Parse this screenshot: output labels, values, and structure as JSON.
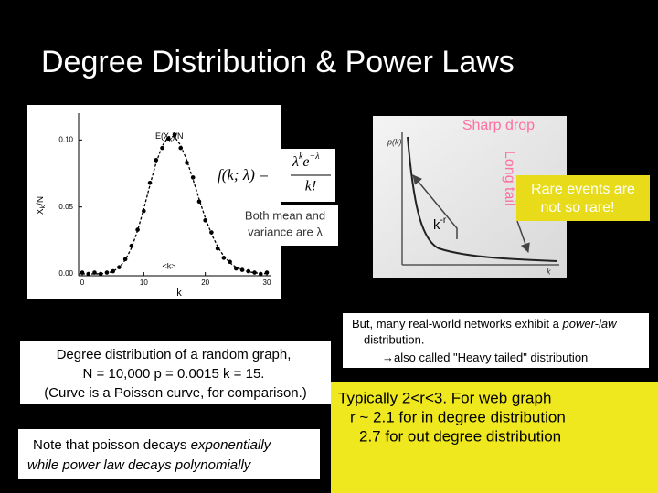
{
  "title": "Degree Distribution & Power Laws",
  "poisson_plot": {
    "top_label": {
      "main": "E(X",
      "sub": "k",
      "tail": ")/N"
    },
    "y_label": {
      "main": "X",
      "sub": "k",
      "tail": "/N"
    },
    "x_label": "k",
    "mean_marker": "<k>",
    "xlim": [
      0,
      30
    ],
    "ylim": [
      0,
      0.12
    ],
    "xticks": [
      0,
      10,
      20,
      30
    ],
    "yticks": [
      {
        "value": 0,
        "label": "0.00"
      },
      {
        "value": 0.05,
        "label": "0.05"
      },
      {
        "value": 0.1,
        "label": "0.10"
      }
    ],
    "curve_x": [
      0,
      1,
      2,
      3,
      4,
      5,
      6,
      7,
      8,
      9,
      10,
      11,
      12,
      13,
      14,
      15,
      16,
      17,
      18,
      19,
      20,
      21,
      22,
      23,
      24,
      25,
      26,
      27,
      28,
      29,
      30
    ],
    "curve_y": [
      0,
      0,
      0,
      0.0002,
      0.0006,
      0.0019,
      0.0048,
      0.0104,
      0.0194,
      0.0324,
      0.0486,
      0.0663,
      0.0829,
      0.0956,
      0.1024,
      0.1024,
      0.096,
      0.0847,
      0.0706,
      0.0557,
      0.0418,
      0.0299,
      0.0204,
      0.0133,
      0.0083,
      0.005,
      0.0029,
      0.0016,
      0.0009,
      0.0004,
      0.0002
    ],
    "points_x": [
      0,
      1,
      2,
      3,
      4,
      5,
      6,
      7,
      8,
      9,
      10,
      11,
      12,
      13,
      14,
      15,
      16,
      17,
      18,
      19,
      20,
      21,
      22,
      23,
      24,
      25,
      26,
      27,
      28,
      29,
      30
    ],
    "points_y": [
      0.001,
      0,
      0.001,
      0,
      0.001,
      0.002,
      0.005,
      0.011,
      0.021,
      0.033,
      0.047,
      0.068,
      0.085,
      0.094,
      0.101,
      0.104,
      0.094,
      0.083,
      0.072,
      0.054,
      0.04,
      0.031,
      0.019,
      0.012,
      0.009,
      0.004,
      0.003,
      0.002,
      0.001,
      0,
      0.001
    ]
  },
  "formula": {
    "lhs": "f(k; λ) =",
    "numerator_base": "λ",
    "numerator_exp": "k",
    "exp_base": "e",
    "exp_exp": "−λ",
    "denominator": "k!"
  },
  "mean_variance_note": [
    "Both mean and",
    "variance are λ"
  ],
  "powerlaw_plot": {
    "y_label": "p(k)",
    "x_label": "k"
  },
  "annotations": {
    "sharp_drop": "Sharp drop",
    "long_tail": "Long tail",
    "exponent_base": "k",
    "exponent": "-r",
    "rare_events": [
      "Rare events are",
      "not so rare!"
    ]
  },
  "caption": [
    "Degree distribution of a random graph,",
    "N = 10,000   p = 0.0015   k = 15.",
    "(Curve is a Poisson curve, for comparison.)"
  ],
  "note": {
    "line1_start": "Note that poisson decays ",
    "line1_em": "exponentially",
    "line2_start": "while power law decays ",
    "line2_em": "polynomially"
  },
  "real_world": {
    "start": "But, many real-world networks exhibit a ",
    "em": "power-law",
    "end": "distribution.",
    "arrow": "→",
    "also": "also called \"Heavy tailed\" distribution"
  },
  "typical_box": [
    "Typically 2<r<3. For web graph",
    "r ~ 2.1 for in degree distribution",
    "2.7 for out degree distribution"
  ]
}
